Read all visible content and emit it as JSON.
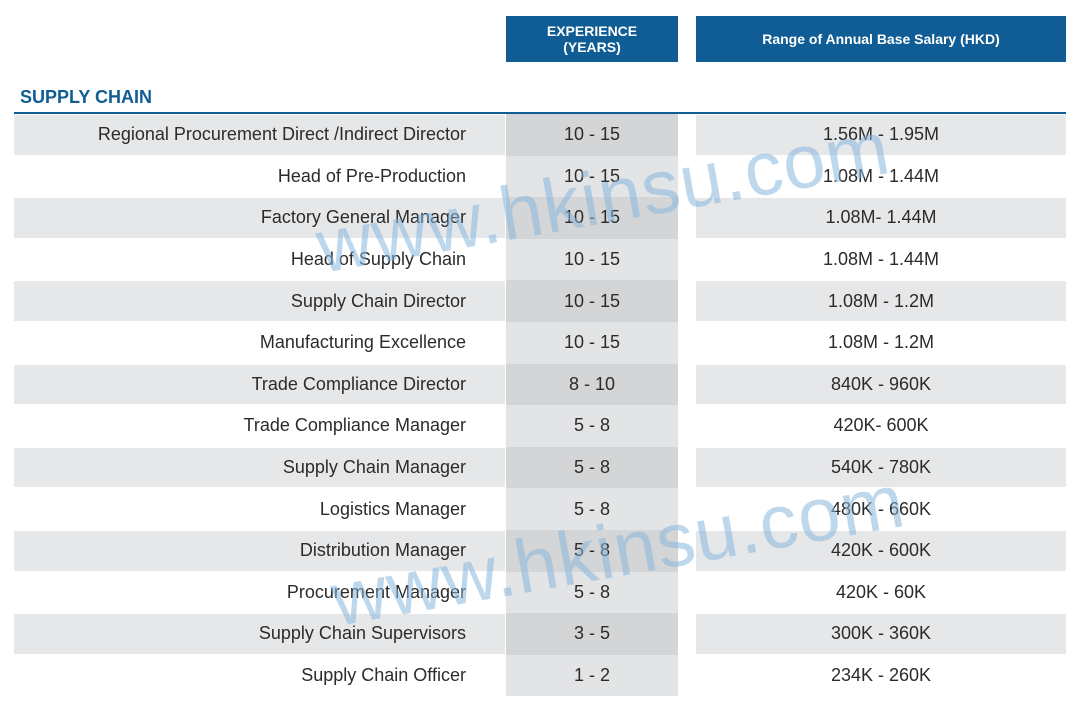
{
  "header": {
    "experience_line1": "EXPERIENCE",
    "experience_line2": "(YEARS)",
    "salary": "Range of Annual Base Salary (HKD)"
  },
  "section": {
    "title": "SUPPLY CHAIN"
  },
  "rows": [
    {
      "role": "Regional Procurement Direct /Indirect Director",
      "experience": "10 - 15",
      "salary": "1.56M - 1.95M"
    },
    {
      "role": "Head of Pre-Production",
      "experience": "10 - 15",
      "salary": "1.08M - 1.44M"
    },
    {
      "role": "Factory General Manager",
      "experience": "10 - 15",
      "salary": "1.08M- 1.44M"
    },
    {
      "role": "Head of Supply Chain",
      "experience": "10 - 15",
      "salary": "1.08M - 1.44M"
    },
    {
      "role": "Supply Chain Director",
      "experience": "10 - 15",
      "salary": "1.08M - 1.2M"
    },
    {
      "role": "Manufacturing Excellence",
      "experience": "10 - 15",
      "salary": "1.08M - 1.2M"
    },
    {
      "role": "Trade Compliance Director",
      "experience": "8 - 10",
      "salary": "840K - 960K"
    },
    {
      "role": "Trade Compliance Manager",
      "experience": "5 - 8",
      "salary": "420K- 600K"
    },
    {
      "role": "Supply Chain Manager",
      "experience": "5 - 8",
      "salary": "540K - 780K"
    },
    {
      "role": "Logistics Manager",
      "experience": "5 - 8",
      "salary": "480K - 660K"
    },
    {
      "role": "Distribution Manager",
      "experience": "5 - 8",
      "salary": "420K - 600K"
    },
    {
      "role": "Procurement Manager",
      "experience": "5 - 8",
      "salary": "420K - 60K"
    },
    {
      "role": "Supply Chain Supervisors",
      "experience": "3 - 5",
      "salary": "300K - 360K"
    },
    {
      "role": "Supply Chain Officer",
      "experience": "1 - 2",
      "salary": "234K - 260K"
    }
  ],
  "watermark": {
    "text": "www.hkinsu.com",
    "color": "#87b7de"
  },
  "colors": {
    "header_bg": "#0f5d94",
    "band_gray": "#e6e7e8",
    "exp_col_gray": "#d4d5d6"
  }
}
